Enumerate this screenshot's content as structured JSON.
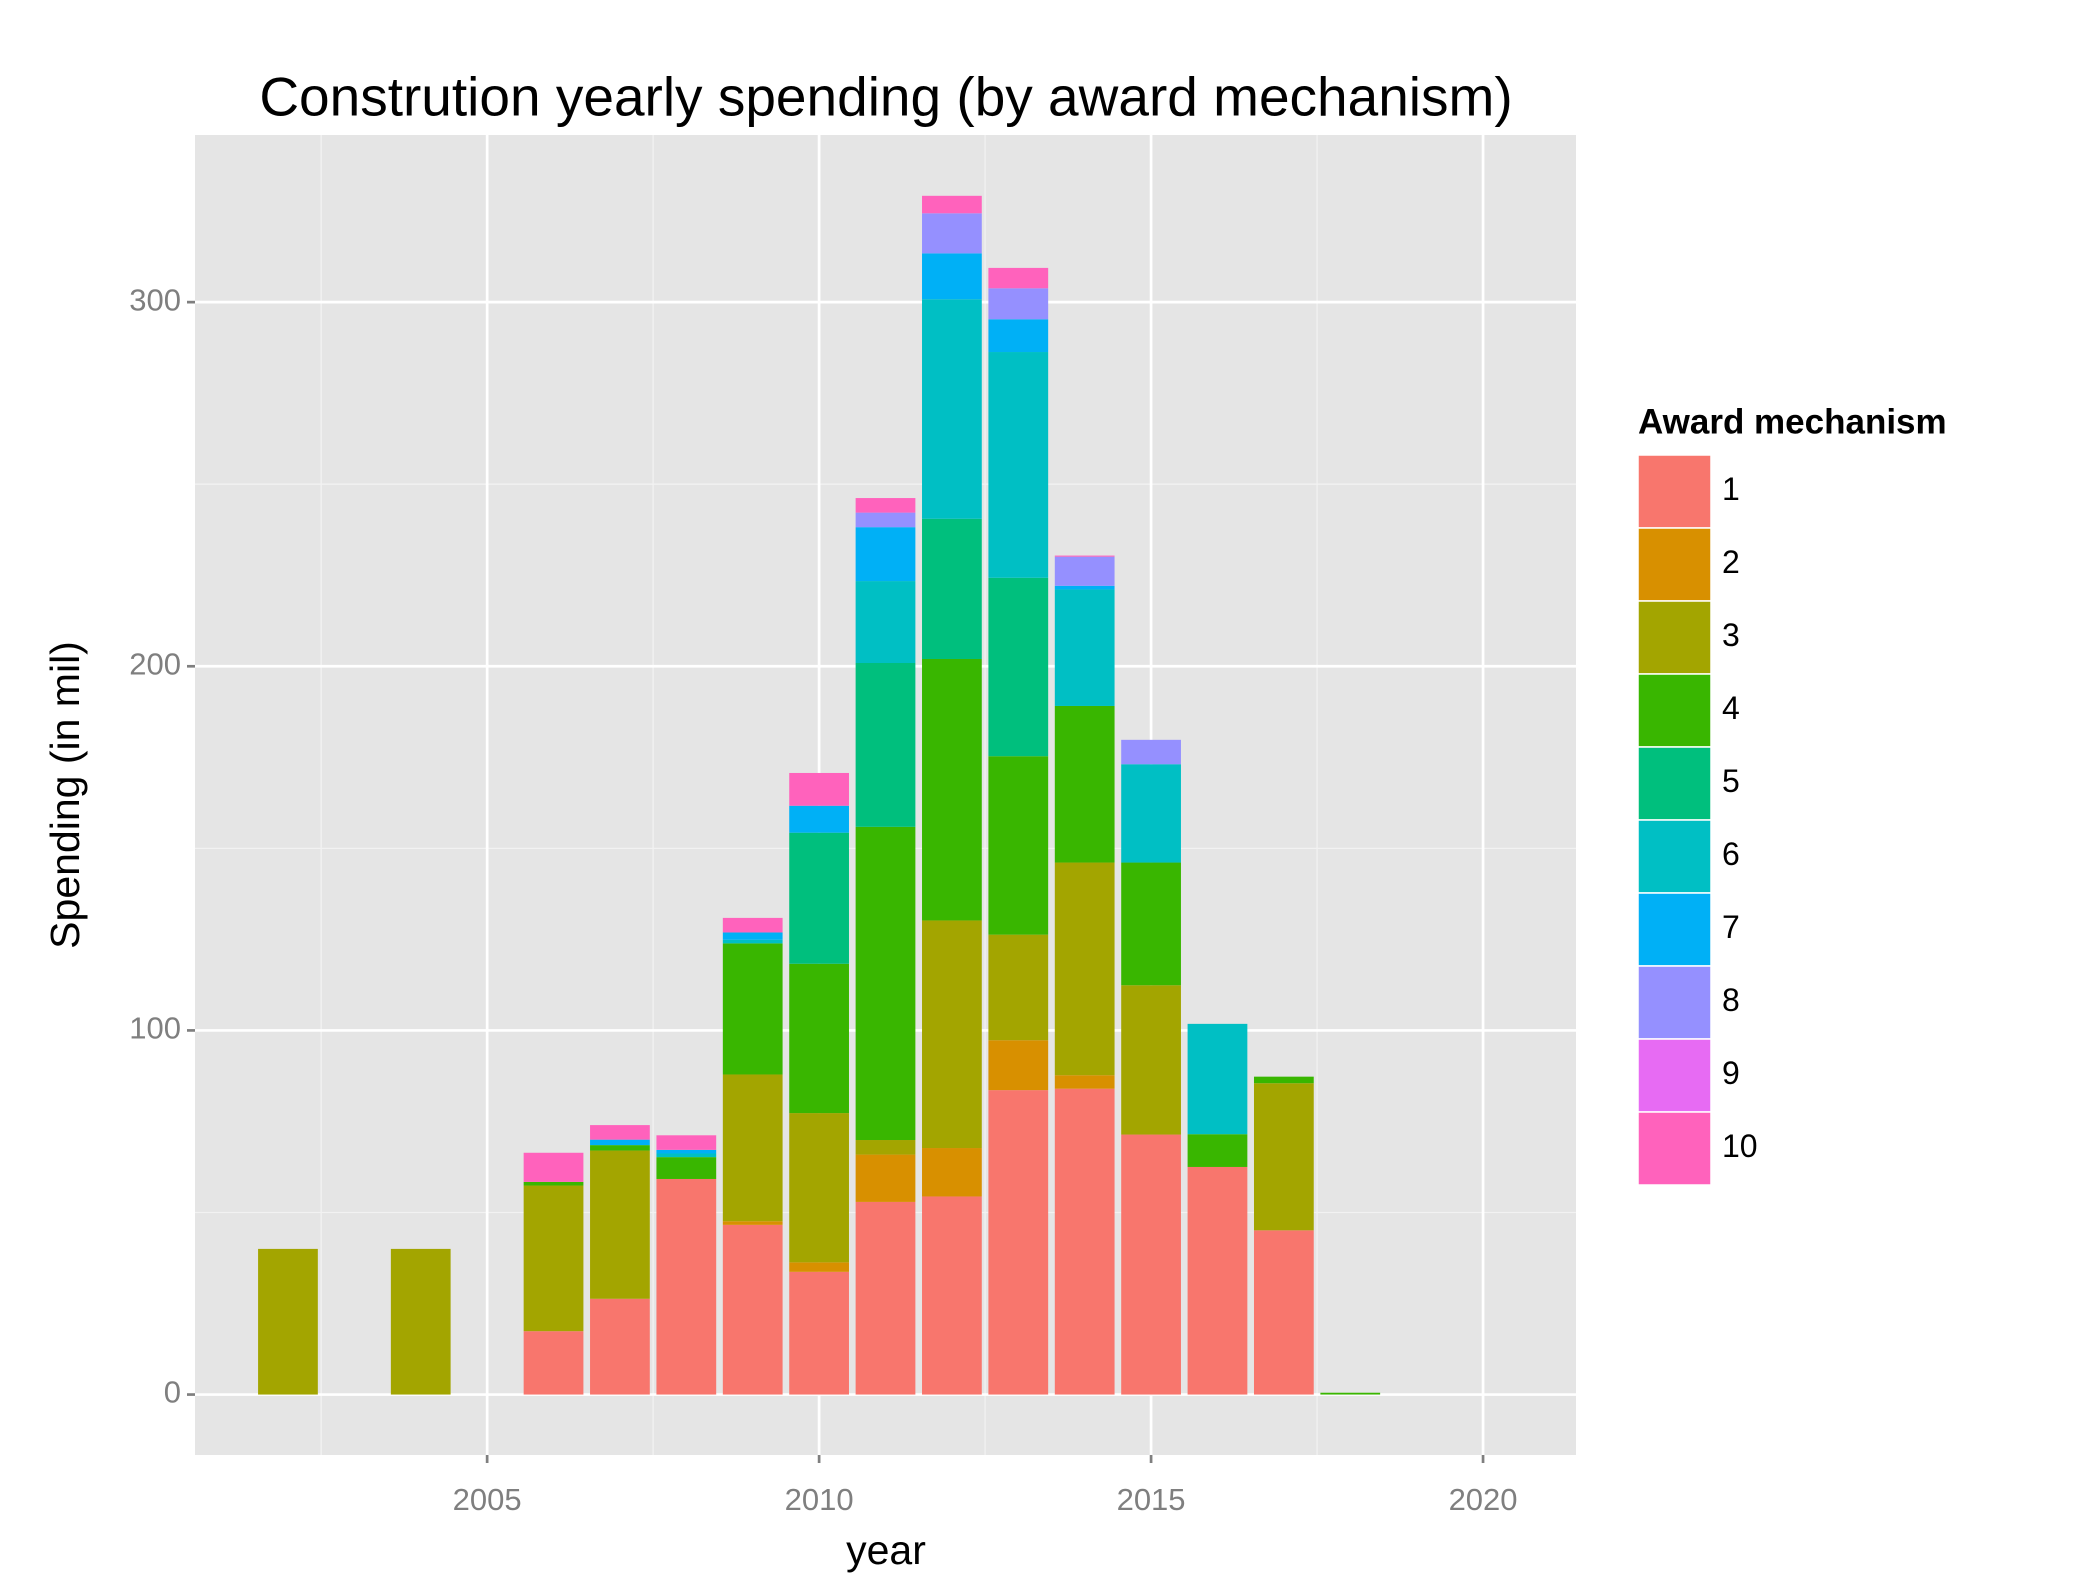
{
  "chart_data": {
    "type": "stacked-bar",
    "title": "Constrution yearly spending (by award mechanism)",
    "x_label": "year",
    "y_label": "Spending (in mil)",
    "legend_title": "Award mechanism",
    "x": [
      2002,
      2004,
      2006,
      2007,
      2008,
      2009,
      2010,
      2011,
      2012,
      2013,
      2014,
      2015,
      2016,
      2017,
      2018
    ],
    "xlim": [
      2000.6,
      2021.4
    ],
    "xticks": [
      2005,
      2010,
      2015,
      2020
    ],
    "ylim": [
      -16.6,
      345.9
    ],
    "yticks": [
      0,
      100,
      200,
      300
    ],
    "grid": true,
    "legend_position": "right",
    "series": [
      {
        "name": "1",
        "color": "#F8766D",
        "values": [
          null,
          null,
          17.4,
          26.3,
          59.2,
          46.6,
          33.7,
          52.9,
          54.4,
          83.6,
          84,
          71.4,
          62.5,
          45.1,
          null
        ]
      },
      {
        "name": "2",
        "color": "#D89000",
        "values": [
          null,
          null,
          null,
          null,
          null,
          1,
          2.6,
          13,
          13.3,
          13.7,
          3.7,
          null,
          null,
          null,
          null
        ]
      },
      {
        "name": "3",
        "color": "#A3A500",
        "values": [
          40,
          40,
          40,
          40.7,
          null,
          40.3,
          41,
          4,
          62.5,
          29,
          58.4,
          41,
          null,
          40.4,
          null
        ]
      },
      {
        "name": "4",
        "color": "#39B600",
        "values": [
          null,
          null,
          1,
          1.5,
          6,
          36,
          41,
          86,
          71.8,
          49,
          43,
          33.7,
          9,
          1.8,
          0.5
        ]
      },
      {
        "name": "5",
        "color": "#00BF7D",
        "values": [
          null,
          null,
          null,
          null,
          null,
          null,
          36,
          45,
          38.5,
          49,
          null,
          null,
          null,
          null,
          null
        ]
      },
      {
        "name": "6",
        "color": "#00BFC4",
        "values": [
          null,
          null,
          null,
          null,
          1,
          1,
          null,
          22.5,
          60.3,
          62,
          32,
          27,
          30.3,
          null,
          null
        ]
      },
      {
        "name": "7",
        "color": "#00B0F6",
        "values": [
          null,
          null,
          null,
          1.5,
          1,
          2,
          7.4,
          14.8,
          12.6,
          9,
          1,
          null,
          null,
          null,
          null
        ]
      },
      {
        "name": "8",
        "color": "#9590FF",
        "values": [
          null,
          null,
          null,
          null,
          null,
          null,
          null,
          4,
          11,
          8.5,
          8,
          6.7,
          null,
          null,
          null
        ]
      },
      {
        "name": "9",
        "color": "#E76BF3",
        "values": [
          null,
          null,
          null,
          null,
          null,
          null,
          null,
          null,
          null,
          null,
          null,
          null,
          null,
          null,
          null
        ]
      },
      {
        "name": "10",
        "color": "#FF62BC",
        "values": [
          null,
          null,
          8,
          4,
          4,
          4,
          9,
          4,
          4.8,
          5.6,
          0.3,
          null,
          null,
          null,
          null
        ]
      }
    ]
  }
}
